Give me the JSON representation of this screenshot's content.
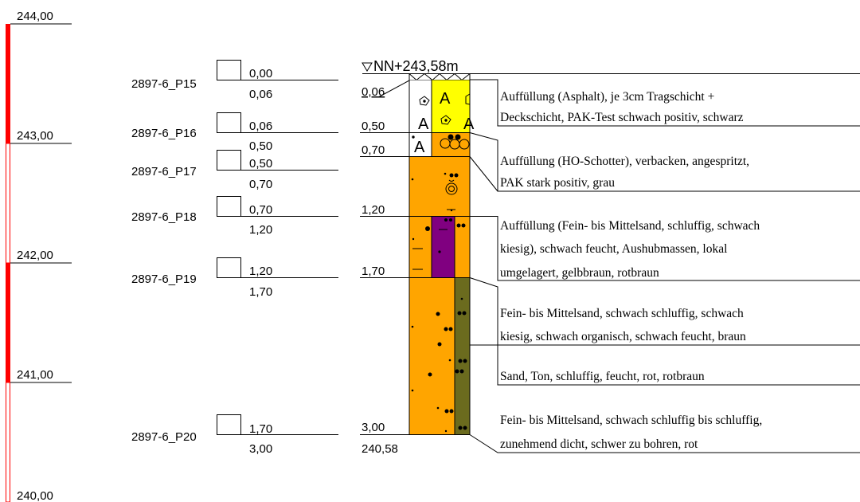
{
  "elevation_scale": {
    "labels": [
      "244,00",
      "243,00",
      "242,00",
      "241,00",
      "240,00"
    ],
    "values": [
      244.0,
      243.0,
      242.0,
      241.0,
      240.0
    ],
    "bar_color": "#ff0000"
  },
  "borehole": {
    "ground_label": "NN+243,58m",
    "ground_elevation": 243.58,
    "end_elevation_label": "240,58",
    "depth_labels": [
      "0,06",
      "0,50",
      "0,70",
      "1,20",
      "1,70",
      "3,00"
    ]
  },
  "samples": [
    {
      "id": "2897-6_P15",
      "top": "0,00",
      "bottom": "0,06"
    },
    {
      "id": "2897-6_P16",
      "top": "0,06",
      "bottom": "0,50"
    },
    {
      "id": "2897-6_P17",
      "top": "0,50",
      "bottom": "0,70"
    },
    {
      "id": "2897-6_P18",
      "top": "0,70",
      "bottom": "1,20"
    },
    {
      "id": "2897-6_P19",
      "top": "1,20",
      "bottom": "1,70"
    },
    {
      "id": "2897-6_P20",
      "top": "1,70",
      "bottom": "3,00"
    }
  ],
  "layers": [
    {
      "lines": [
        "Auffüllung (Asphalt), je 3cm Tragschicht +",
        "Deckschicht, PAK-Test schwach positiv, schwarz"
      ],
      "color_a": "#ffffff",
      "color_b": "#ffff00"
    },
    {
      "lines": [
        "Auffüllung (HO-Schotter), verbacken, angespritzt,",
        "PAK stark positiv, grau"
      ],
      "color_a": "#ffffff",
      "color_b": "#ffa500"
    },
    {
      "lines": [
        "Auffüllung (Fein- bis Mittelsand, schluffig, schwach",
        "kiesig), schwach feucht, Aushubmassen, lokal",
        "umgelagert, gelbbraun, rotbraun"
      ],
      "color_a": "#ffa500",
      "color_b": "#ffa500"
    },
    {
      "lines": [
        "Fein- bis Mittelsand, schwach schluffig, schwach",
        "kiesig, schwach organisch, schwach feucht, braun"
      ],
      "color_a": "#ffa500",
      "color_b": "#800080"
    },
    {
      "lines": [
        "Sand, Ton, schluffig, feucht, rot, rotbraun"
      ],
      "color_a": "#ffa500",
      "color_b": "#ffa500"
    },
    {
      "lines": [
        "Fein- bis Mittelsand, schwach schluffig bis schluffig,",
        "zunehmend dicht, schwer zu bohren, rot"
      ],
      "color_a": "#ffa500",
      "color_b": "#6b6b1e"
    }
  ]
}
